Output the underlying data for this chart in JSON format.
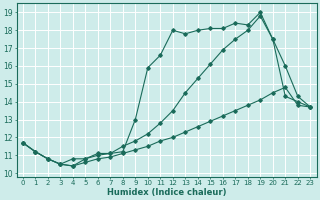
{
  "xlabel": "Humidex (Indice chaleur)",
  "xlim": [
    -0.5,
    23.5
  ],
  "ylim": [
    9.8,
    19.5
  ],
  "xticks": [
    0,
    1,
    2,
    3,
    4,
    5,
    6,
    7,
    8,
    9,
    10,
    11,
    12,
    13,
    14,
    15,
    16,
    17,
    18,
    19,
    20,
    21,
    22,
    23
  ],
  "yticks": [
    10,
    11,
    12,
    13,
    14,
    15,
    16,
    17,
    18,
    19
  ],
  "line_color": "#1a6b5a",
  "bg_color": "#ceecea",
  "grid_color": "#ffffff",
  "line1_x": [
    0,
    1,
    2,
    3,
    4,
    5,
    6,
    7,
    8,
    9,
    10,
    11,
    12,
    13,
    14,
    15,
    16,
    17,
    18,
    19,
    20,
    21,
    22,
    23
  ],
  "line1_y": [
    11.7,
    11.2,
    10.8,
    10.5,
    10.8,
    10.8,
    11.1,
    11.1,
    11.2,
    13.0,
    15.9,
    16.6,
    18.0,
    17.8,
    18.0,
    18.1,
    18.1,
    18.4,
    18.3,
    19.0,
    17.5,
    16.0,
    14.3,
    13.7
  ],
  "line2_x": [
    0,
    1,
    2,
    3,
    4,
    5,
    6,
    7,
    8,
    9,
    10,
    11,
    12,
    13,
    14,
    15,
    16,
    17,
    18,
    19,
    20,
    21,
    22,
    23
  ],
  "line2_y": [
    11.7,
    11.2,
    10.8,
    10.5,
    10.4,
    10.8,
    11.0,
    11.1,
    11.5,
    11.8,
    12.2,
    12.8,
    13.5,
    14.5,
    15.3,
    16.1,
    16.9,
    17.5,
    18.0,
    18.8,
    17.5,
    14.3,
    14.0,
    13.7
  ],
  "line3_x": [
    0,
    1,
    2,
    3,
    4,
    5,
    6,
    7,
    8,
    9,
    10,
    11,
    12,
    13,
    14,
    15,
    16,
    17,
    18,
    19,
    20,
    21,
    22,
    23
  ],
  "line3_y": [
    11.7,
    11.2,
    10.8,
    10.5,
    10.4,
    10.6,
    10.8,
    10.9,
    11.1,
    11.3,
    11.5,
    11.8,
    12.0,
    12.3,
    12.6,
    12.9,
    13.2,
    13.5,
    13.8,
    14.1,
    14.5,
    14.8,
    13.8,
    13.7
  ],
  "marker": "D",
  "marker_size": 1.8,
  "linewidth": 0.8
}
